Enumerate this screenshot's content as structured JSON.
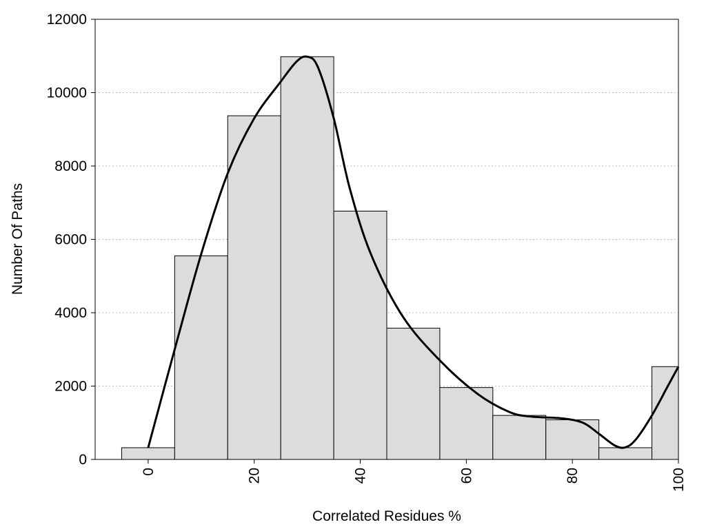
{
  "chart_data": {
    "type": "bar",
    "title": "",
    "xlabel": "Correlated Residues %",
    "ylabel": "Number Of Paths",
    "xlim": [
      -10,
      100
    ],
    "ylim": [
      0,
      12000
    ],
    "x_ticks": [
      0,
      20,
      40,
      60,
      80,
      100
    ],
    "y_ticks": [
      0,
      2000,
      4000,
      6000,
      8000,
      10000,
      12000
    ],
    "x_tick_labels": [
      "0",
      "20",
      "40",
      "60",
      "80",
      "100"
    ],
    "y_tick_labels": [
      "0",
      "2000",
      "4000",
      "6000",
      "8000",
      "10000",
      "12000"
    ],
    "grid": "horizontal dotted",
    "bin_width": 10,
    "categories": [
      0,
      10,
      20,
      30,
      40,
      50,
      60,
      70,
      80,
      90,
      100
    ],
    "values": [
      320,
      5550,
      9370,
      10980,
      6770,
      3580,
      1960,
      1200,
      1080,
      320,
      2530
    ],
    "curve": {
      "x": [
        0,
        5,
        10,
        15,
        20,
        25,
        28,
        30,
        32,
        35,
        38,
        42,
        48,
        55,
        62,
        68,
        72,
        78,
        82,
        85,
        88,
        90,
        92,
        95,
        98,
        100
      ],
      "y": [
        320,
        3000,
        5600,
        7800,
        9300,
        10300,
        10850,
        10980,
        10700,
        9300,
        7400,
        5600,
        3900,
        2700,
        1800,
        1300,
        1170,
        1120,
        1000,
        700,
        380,
        330,
        550,
        1200,
        2000,
        2530
      ]
    },
    "colors": {
      "bar_fill": "#dcdcdc",
      "bar_stroke": "#000000",
      "curve": "#000000",
      "grid": "#bbbbbb"
    }
  }
}
